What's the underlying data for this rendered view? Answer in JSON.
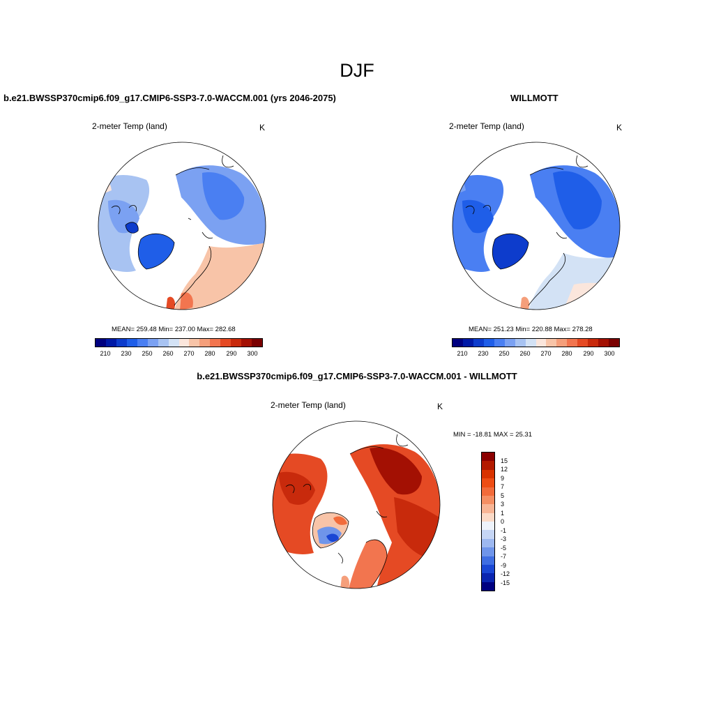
{
  "figure": {
    "title": "DJF",
    "panels": [
      {
        "id": "model",
        "title": "b.e21.BWSSP370cmip6.f09_g17.CMIP6-SSP3-7.0-WACCM.001 (yrs 2046-2075)",
        "variable": "2-meter Temp (land)",
        "units": "K",
        "stats": "MEAN= 259.48  Min= 237.00  Max= 282.68"
      },
      {
        "id": "obs",
        "title": "WILLMOTT",
        "variable": "2-meter Temp (land)",
        "units": "K",
        "stats": "MEAN= 251.23  Min= 220.88  Max= 278.28"
      },
      {
        "id": "diff",
        "title": "b.e21.BWSSP370cmip6.f09_g17.CMIP6-SSP3-7.0-WACCM.001 - WILLMOTT",
        "variable": "2-meter Temp (land)",
        "units": "K",
        "stats": "MIN = -18.81 MAX =  25.31"
      }
    ]
  },
  "colorbar_abs": {
    "tick_labels": [
      "210",
      "230",
      "250",
      "260",
      "270",
      "280",
      "290",
      "300"
    ],
    "colors": [
      "#00007f",
      "#0019a6",
      "#0d3ccc",
      "#1f5ee8",
      "#4a7ff2",
      "#7ba1f2",
      "#a8c3f2",
      "#d3e2f5",
      "#fbe6dc",
      "#f8c4a8",
      "#f59f7b",
      "#f2754f",
      "#e54a24",
      "#c82a0c",
      "#a31003",
      "#7a0000"
    ]
  },
  "colorbar_diff": {
    "tick_labels": [
      "15",
      "12",
      "9",
      "7",
      "5",
      "3",
      "1",
      "0",
      "-1",
      "-3",
      "-5",
      "-7",
      "-9",
      "-12",
      "-15"
    ],
    "colors": [
      "#8b0000",
      "#b31a00",
      "#d93300",
      "#ee4d14",
      "#f26b3a",
      "#f58f63",
      "#f8b595",
      "#fbdac7",
      "#eef3fb",
      "#c6d6f5",
      "#9db8f0",
      "#6f95ea",
      "#3f6ee2",
      "#1a47d4",
      "#0a25b0",
      "#000080"
    ]
  }
}
